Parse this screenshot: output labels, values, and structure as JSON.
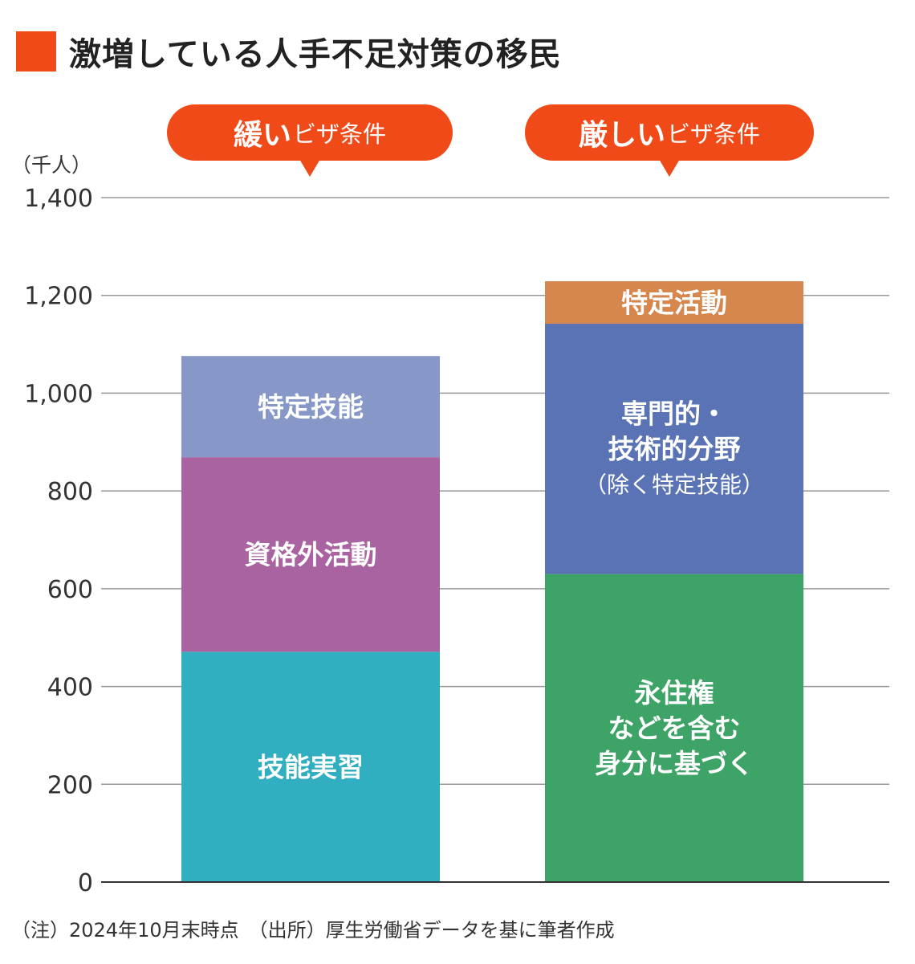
{
  "title": "激増している人手不足対策の移民",
  "colors": {
    "accent": "#F04A19",
    "grid": "#9A9A9A",
    "axis": "#333333"
  },
  "unit_label": "（千人）",
  "callouts": [
    {
      "strong": "緩い",
      "normal": "ビザ条件"
    },
    {
      "strong": "厳しい",
      "normal": "ビザ条件"
    }
  ],
  "footnote": "（注）2024年10月末時点　（出所）厚生労働省データを基に筆者作成",
  "chart_data": {
    "type": "bar",
    "stacked": true,
    "ylim": [
      0,
      1400
    ],
    "yticks": [
      0,
      200,
      400,
      600,
      800,
      1000,
      1200,
      1400
    ],
    "ytick_labels": [
      "0",
      "200",
      "400",
      "600",
      "800",
      "1,000",
      "1,200",
      "1,400"
    ],
    "grid": true,
    "bars": [
      {
        "segments": [
          {
            "label": [
              "技能実習"
            ],
            "value": 471,
            "color": "#31AEBF"
          },
          {
            "label": [
              "資格外活動"
            ],
            "value": 398,
            "color": "#A963A0"
          },
          {
            "label": [
              "特定技能"
            ],
            "value": 207,
            "color": "#8697C8"
          }
        ]
      },
      {
        "segments": [
          {
            "label": [
              "永住権",
              "などを含む",
              "身分に基づく"
            ],
            "value": 630,
            "color": "#3DA366"
          },
          {
            "label": [
              "専門的・",
              "技術的分野",
              "（除く特定技能）"
            ],
            "value": 512,
            "color": "#5A73B5"
          },
          {
            "label": [
              "特定活動"
            ],
            "value": 87,
            "color": "#D5874E"
          }
        ]
      }
    ]
  }
}
